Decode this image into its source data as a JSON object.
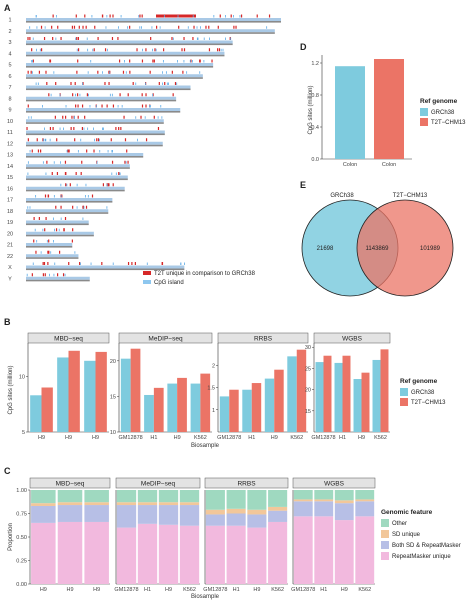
{
  "panels": {
    "A": "A",
    "B": "B",
    "C": "C",
    "D": "D",
    "E": "E"
  },
  "colors": {
    "grch38": "#7ecbde",
    "t2t": "#eb7466",
    "chrom_bar": "#a9c9e6",
    "chrom_end": "#8a8a8a",
    "t2t_unique": "#d62728",
    "cpg": "#8ec7ef",
    "other": "#9fd9c0",
    "sd": "#f2c79a",
    "both": "#b7bfe6",
    "rm": "#f2b9de"
  },
  "panelA": {
    "chromosomes": [
      "1",
      "2",
      "3",
      "4",
      "5",
      "6",
      "7",
      "8",
      "9",
      "10",
      "11",
      "12",
      "13",
      "14",
      "15",
      "16",
      "17",
      "18",
      "19",
      "20",
      "21",
      "22",
      "X",
      "Y"
    ],
    "lengths_mb": [
      248,
      242,
      201,
      193,
      182,
      172,
      160,
      146,
      150,
      134,
      135,
      133,
      114,
      101,
      99,
      96,
      84,
      80,
      61,
      66,
      45,
      51,
      154,
      62
    ],
    "legend": [
      "T2T unique in comparison to GRCh38",
      "CpG island"
    ]
  },
  "chart_data": [
    {
      "panel": "B",
      "type": "bar",
      "ylabel": "CpG sites (million)",
      "xlabel": "Biosample",
      "legend_title": "Ref genome",
      "series_names": [
        "GRCh38",
        "T2T−CHM13"
      ],
      "facets": [
        {
          "name": "MBD−seq",
          "categories": [
            "H9",
            "H9",
            "H9"
          ],
          "GRCh38": [
            8.3,
            11.7,
            11.4
          ],
          "T2T": [
            9.0,
            12.3,
            12.2
          ],
          "ylim": [
            5,
            13
          ],
          "ticks": [
            5,
            10
          ]
        },
        {
          "name": "MeDIP−seq",
          "categories": [
            "GM12878",
            "H1",
            "H9",
            "K562"
          ],
          "GRCh38": [
            20.3,
            15.2,
            16.8,
            16.8
          ],
          "T2T": [
            21.7,
            16.2,
            17.6,
            18.2
          ],
          "ylim": [
            10,
            22.5
          ],
          "ticks": [
            10,
            15,
            20
          ]
        },
        {
          "name": "RRBS",
          "categories": [
            "GM12878",
            "H1",
            "H9",
            "K562"
          ],
          "GRCh38": [
            1.3,
            1.45,
            1.7,
            2.2
          ],
          "T2T": [
            1.45,
            1.6,
            1.9,
            2.35
          ],
          "ylim": [
            0.5,
            2.5
          ],
          "ticks": [
            1.0,
            1.5,
            2.0
          ]
        },
        {
          "name": "WGBS",
          "categories": [
            "GM12878",
            "H1",
            "H9",
            "K562"
          ],
          "GRCh38": [
            26.5,
            26.3,
            22.5,
            27
          ],
          "T2T": [
            28,
            28,
            24,
            29.5
          ],
          "ylim": [
            10,
            31
          ],
          "ticks": [
            15,
            20,
            25,
            30
          ]
        }
      ]
    },
    {
      "panel": "C",
      "type": "bar",
      "ylabel": "Proportion",
      "xlabel": "Biosample",
      "legend_title": "Genomic feature",
      "stack_order": [
        "RepeatMasker unique",
        "Both SD & RepeatMasker",
        "SD unique",
        "Other"
      ],
      "ticks": [
        0.0,
        0.25,
        0.5,
        0.75,
        1.0
      ],
      "facets": [
        {
          "name": "MBD−seq",
          "categories": [
            "H9",
            "H9",
            "H9"
          ],
          "stacks": [
            [
              0.65,
              0.18,
              0.03,
              0.14
            ],
            [
              0.66,
              0.18,
              0.03,
              0.13
            ],
            [
              0.66,
              0.18,
              0.03,
              0.13
            ]
          ]
        },
        {
          "name": "MeDIP−seq",
          "categories": [
            "GM12878",
            "H1",
            "H9",
            "K562"
          ],
          "stacks": [
            [
              0.6,
              0.24,
              0.03,
              0.13
            ],
            [
              0.64,
              0.2,
              0.03,
              0.13
            ],
            [
              0.63,
              0.21,
              0.03,
              0.13
            ],
            [
              0.62,
              0.22,
              0.03,
              0.13
            ]
          ]
        },
        {
          "name": "RRBS",
          "categories": [
            "GM12878",
            "H1",
            "H9",
            "K562"
          ],
          "stacks": [
            [
              0.62,
              0.12,
              0.05,
              0.21
            ],
            [
              0.62,
              0.13,
              0.05,
              0.2
            ],
            [
              0.6,
              0.14,
              0.05,
              0.21
            ],
            [
              0.66,
              0.12,
              0.04,
              0.18
            ]
          ]
        },
        {
          "name": "WGBS",
          "categories": [
            "GM12878",
            "H1",
            "H9",
            "K562"
          ],
          "stacks": [
            [
              0.72,
              0.16,
              0.02,
              0.1
            ],
            [
              0.72,
              0.16,
              0.02,
              0.1
            ],
            [
              0.68,
              0.18,
              0.03,
              0.11
            ],
            [
              0.72,
              0.16,
              0.02,
              0.1
            ]
          ]
        }
      ]
    },
    {
      "panel": "D",
      "type": "bar",
      "ylabel": "CpG sites (million)",
      "legend_title": "Ref genome",
      "categories": [
        "Colon",
        "Colon"
      ],
      "values": [
        1.16,
        1.25
      ],
      "series_names": [
        "GRCh38",
        "T2T−CHM13"
      ],
      "ylim": [
        0,
        1.3
      ],
      "ticks": [
        0.0,
        0.4,
        0.8,
        1.2
      ]
    },
    {
      "panel": "E",
      "type": "venn",
      "sets": [
        "GRCh38",
        "T2T−CHM13"
      ],
      "left_only": "21698",
      "overlap": "1143869",
      "right_only": "101989"
    }
  ]
}
